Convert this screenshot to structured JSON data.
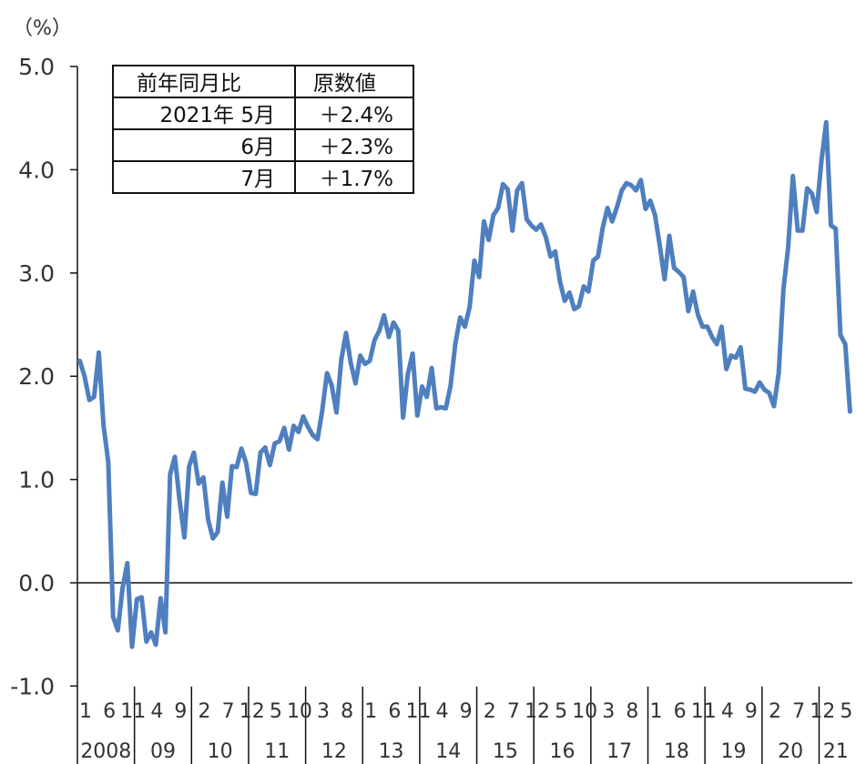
{
  "chart_data": {
    "type": "line",
    "ylabel": "（%）",
    "ylim": [
      -1.0,
      5.0
    ],
    "yticks": [
      "5.0",
      "4.0",
      "3.0",
      "2.0",
      "1.0",
      "0.0",
      "-1.0"
    ],
    "line_color": "#4f7fbe",
    "grid": false,
    "month_tick_labels": [
      "1",
      "6",
      "11",
      "4",
      "9",
      "2",
      "7",
      "12",
      "5",
      "10",
      "3",
      "8",
      "1",
      "6",
      "11",
      "4",
      "9",
      "2",
      "7",
      "12",
      "5",
      "10",
      "3",
      "8",
      "1",
      "6",
      "11",
      "4",
      "9",
      "2",
      "7",
      "12",
      "5"
    ],
    "year_labels": [
      "2008",
      "09",
      "10",
      "11",
      "12",
      "13",
      "14",
      "15",
      "16",
      "17",
      "18",
      "19",
      "20",
      "21"
    ],
    "series": [
      {
        "x_start": "2008-01",
        "x_end": "2021-07",
        "values": [
          2.15,
          2.0,
          1.77,
          1.8,
          2.23,
          1.52,
          1.17,
          -0.33,
          -0.46,
          -0.05,
          0.19,
          -0.62,
          -0.16,
          -0.14,
          -0.57,
          -0.48,
          -0.6,
          -0.15,
          -0.48,
          1.05,
          1.22,
          0.8,
          0.44,
          1.13,
          1.26,
          0.96,
          1.02,
          0.61,
          0.43,
          0.49,
          0.97,
          0.64,
          1.13,
          1.12,
          1.3,
          1.16,
          0.87,
          0.86,
          1.26,
          1.31,
          1.14,
          1.35,
          1.37,
          1.5,
          1.29,
          1.52,
          1.46,
          1.61,
          1.51,
          1.43,
          1.39,
          1.67,
          2.03,
          1.91,
          1.65,
          2.16,
          2.42,
          2.13,
          1.93,
          2.2,
          2.12,
          2.15,
          2.35,
          2.44,
          2.59,
          2.38,
          2.52,
          2.44,
          1.6,
          2.02,
          2.22,
          1.62,
          1.9,
          1.8,
          2.08,
          1.69,
          1.7,
          1.69,
          1.91,
          2.32,
          2.57,
          2.48,
          2.67,
          3.12,
          2.96,
          3.5,
          3.32,
          3.56,
          3.63,
          3.86,
          3.81,
          3.41,
          3.8,
          3.87,
          3.52,
          3.46,
          3.42,
          3.47,
          3.35,
          3.16,
          3.21,
          2.92,
          2.73,
          2.81,
          2.65,
          2.68,
          2.87,
          2.82,
          3.12,
          3.16,
          3.44,
          3.63,
          3.5,
          3.64,
          3.8,
          3.87,
          3.85,
          3.8,
          3.9,
          3.62,
          3.7,
          3.56,
          3.26,
          2.94,
          3.36,
          3.05,
          3.01,
          2.96,
          2.63,
          2.82,
          2.6,
          2.48,
          2.48,
          2.38,
          2.31,
          2.48,
          2.07,
          2.2,
          2.18,
          2.28,
          1.88,
          1.87,
          1.85,
          1.94,
          1.87,
          1.84,
          1.71,
          2.03,
          2.84,
          3.25,
          3.94,
          3.41,
          3.41,
          3.82,
          3.77,
          3.59,
          4.09,
          4.46,
          3.46,
          3.43,
          2.4,
          2.31,
          1.66
        ]
      }
    ],
    "table": {
      "header": [
        "前年同月比",
        "原数値"
      ],
      "rows": [
        [
          "2021年 5月",
          "＋2.4%"
        ],
        [
          "6月",
          "＋2.3%"
        ],
        [
          "7月",
          "＋1.7%"
        ]
      ]
    }
  }
}
